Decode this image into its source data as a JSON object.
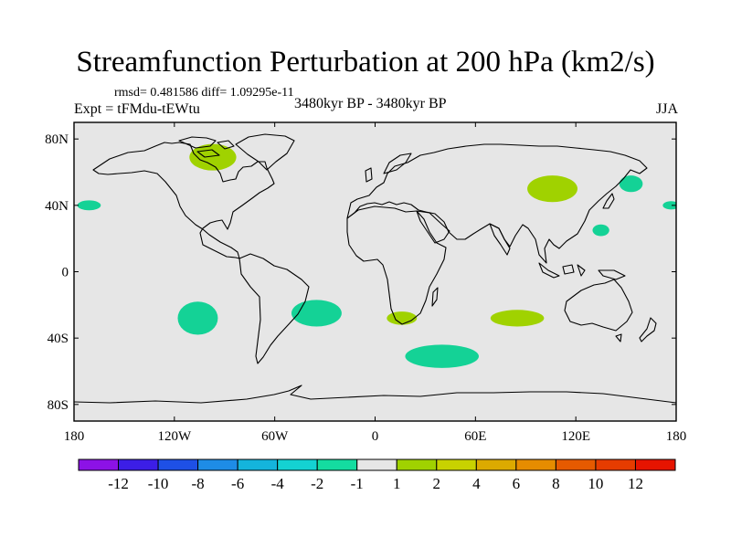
{
  "title": "Streamfunction Perturbation at 200 hPa (km2/s)",
  "stats_text": "rmsd= 0.481586 diff= 1.09295e-11",
  "left_label": "Expt = tFMdu-tEWtu",
  "center_label": "3480kyr BP - 3480kyr BP",
  "right_label": "JJA",
  "map": {
    "projection": "cylindrical equidistant",
    "lon_range": [
      -180,
      180
    ],
    "lat_range": [
      -90,
      90
    ],
    "background_color": "#e6e6e6",
    "y_ticks": [
      {
        "lat": 80,
        "label": "80N"
      },
      {
        "lat": 40,
        "label": "40N"
      },
      {
        "lat": 0,
        "label": "0"
      },
      {
        "lat": -40,
        "label": "40S"
      },
      {
        "lat": -80,
        "label": "80S"
      }
    ],
    "x_ticks": [
      {
        "lon": -180,
        "label": "180"
      },
      {
        "lon": -120,
        "label": "120W"
      },
      {
        "lon": -60,
        "label": "60W"
      },
      {
        "lon": 0,
        "label": "0"
      },
      {
        "lon": 60,
        "label": "60E"
      },
      {
        "lon": 120,
        "label": "120E"
      },
      {
        "lon": 180,
        "label": "180"
      }
    ]
  },
  "anomaly_regions": [
    {
      "name": "canadian-arctic-positive",
      "lon": -97,
      "lat": 69,
      "rlon": 14,
      "rlat": 8,
      "class": "2",
      "color": "#a0d200"
    },
    {
      "name": "north-pacific-east-negative",
      "lon": -171,
      "lat": 40,
      "rlon": 7,
      "rlat": 3,
      "class": "-2",
      "color": "#14d296"
    },
    {
      "name": "north-pacific-west-negative",
      "lon": 177,
      "lat": 40,
      "rlon": 5,
      "rlat": 2.5,
      "class": "-2",
      "color": "#14d296"
    },
    {
      "name": "mongolia-positive",
      "lon": 106,
      "lat": 50,
      "rlon": 15,
      "rlat": 8,
      "class": "1",
      "color": "#a0d200"
    },
    {
      "name": "sea-of-okhotsk-negative",
      "lon": 153,
      "lat": 53,
      "rlon": 7,
      "rlat": 5,
      "class": "-2",
      "color": "#14d296"
    },
    {
      "name": "east-china-sea-negative",
      "lon": 135,
      "lat": 25,
      "rlon": 5,
      "rlat": 3.5,
      "class": "-2",
      "color": "#14d296"
    },
    {
      "name": "southeast-pacific-negative",
      "lon": -106,
      "lat": -28,
      "rlon": 12,
      "rlat": 10,
      "class": "-2",
      "color": "#14d296"
    },
    {
      "name": "south-atlantic-negative",
      "lon": -35,
      "lat": -25,
      "rlon": 15,
      "rlat": 8,
      "class": "-2",
      "color": "#14d296"
    },
    {
      "name": "south-africa-positive",
      "lon": 16,
      "lat": -28,
      "rlon": 9,
      "rlat": 4,
      "class": "1",
      "color": "#a0d200"
    },
    {
      "name": "south-indian-ocean-positive",
      "lon": 85,
      "lat": -28,
      "rlon": 16,
      "rlat": 5,
      "class": "1",
      "color": "#a0d200"
    },
    {
      "name": "southern-ocean-negative",
      "lon": 40,
      "lat": -51,
      "rlon": 22,
      "rlat": 7,
      "class": "-2",
      "color": "#14d296"
    }
  ],
  "colorbar": {
    "labels": [
      "-12",
      "-10",
      "-8",
      "-6",
      "-4",
      "-2",
      "-1",
      "1",
      "2",
      "4",
      "6",
      "8",
      "10",
      "12"
    ],
    "colors": [
      "#8c12e6",
      "#3c1ee6",
      "#1e50e6",
      "#1e8ce6",
      "#14b4dc",
      "#14d2d2",
      "#14dca0",
      "#e6e6e6",
      "#a0d200",
      "#c8d200",
      "#dcaa00",
      "#e68c00",
      "#e65a00",
      "#e63c00",
      "#e61400"
    ]
  }
}
